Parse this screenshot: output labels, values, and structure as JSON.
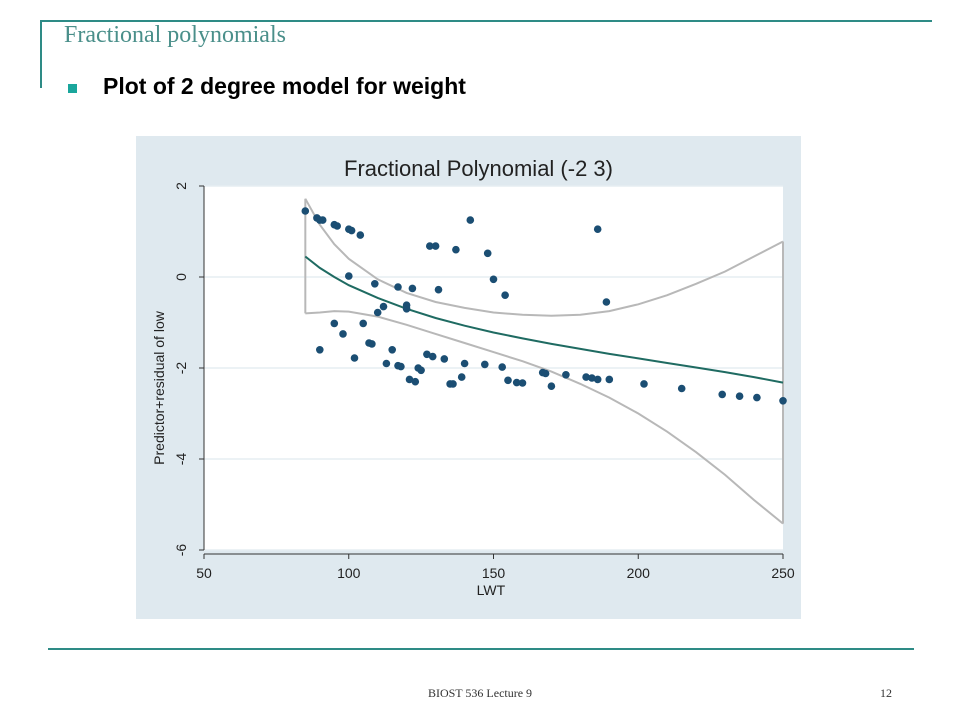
{
  "slide": {
    "title": "Fractional polynomials",
    "bullet": "Plot of 2 degree model for weight",
    "footer": "BIOST 536 Lecture 9",
    "page_number": "12"
  },
  "colors": {
    "accent": "#2e8b86",
    "bullet": "#1aa69c",
    "chart_background": "#dfe9ef",
    "plot_background": "#ffffff",
    "point": "#1b4e73",
    "fit_line": "#1f6b62",
    "ci_line": "#b8b8b8"
  },
  "chart_data": {
    "type": "scatter",
    "title": "Fractional Polynomial (-2 3)",
    "xlabel": "LWT",
    "ylabel": "Predictor+residual of low",
    "xlim": [
      50,
      250
    ],
    "ylim": [
      -6,
      2
    ],
    "xticks": [
      "50",
      "100",
      "150",
      "200",
      "250"
    ],
    "yticks": [
      "-6",
      "-4",
      "-2",
      "0",
      "2"
    ],
    "grid": true,
    "points": [
      [
        85,
        1.45
      ],
      [
        89,
        1.3
      ],
      [
        90,
        1.25
      ],
      [
        91,
        1.25
      ],
      [
        95,
        1.15
      ],
      [
        96,
        1.12
      ],
      [
        100,
        1.05
      ],
      [
        101,
        1.02
      ],
      [
        104,
        0.92
      ],
      [
        128,
        0.68
      ],
      [
        130,
        0.68
      ],
      [
        137,
        0.6
      ],
      [
        142,
        1.25
      ],
      [
        148,
        0.52
      ],
      [
        150,
        -0.05
      ],
      [
        154,
        -0.4
      ],
      [
        186,
        1.05
      ],
      [
        189,
        -0.55
      ],
      [
        100,
        0.02
      ],
      [
        109,
        -0.15
      ],
      [
        117,
        -0.22
      ],
      [
        122,
        -0.25
      ],
      [
        131,
        -0.28
      ],
      [
        120,
        -0.62
      ],
      [
        120,
        -0.7
      ],
      [
        112,
        -0.65
      ],
      [
        110,
        -0.78
      ],
      [
        105,
        -1.02
      ],
      [
        95,
        -1.02
      ],
      [
        98,
        -1.25
      ],
      [
        107,
        -1.45
      ],
      [
        108,
        -1.47
      ],
      [
        90,
        -1.6
      ],
      [
        115,
        -1.6
      ],
      [
        102,
        -1.78
      ],
      [
        113,
        -1.9
      ],
      [
        117,
        -1.95
      ],
      [
        118,
        -1.97
      ],
      [
        124,
        -2.0
      ],
      [
        125,
        -2.05
      ],
      [
        127,
        -1.7
      ],
      [
        129,
        -1.75
      ],
      [
        133,
        -1.8
      ],
      [
        140,
        -1.9
      ],
      [
        147,
        -1.92
      ],
      [
        153,
        -1.98
      ],
      [
        121,
        -2.25
      ],
      [
        123,
        -2.3
      ],
      [
        135,
        -2.35
      ],
      [
        136,
        -2.35
      ],
      [
        139,
        -2.2
      ],
      [
        155,
        -2.27
      ],
      [
        158,
        -2.32
      ],
      [
        160,
        -2.33
      ],
      [
        167,
        -2.1
      ],
      [
        168,
        -2.12
      ],
      [
        170,
        -2.4
      ],
      [
        175,
        -2.15
      ],
      [
        182,
        -2.2
      ],
      [
        184,
        -2.22
      ],
      [
        186,
        -2.25
      ],
      [
        190,
        -2.25
      ],
      [
        202,
        -2.35
      ],
      [
        215,
        -2.45
      ],
      [
        229,
        -2.58
      ],
      [
        235,
        -2.62
      ],
      [
        241,
        -2.65
      ],
      [
        250,
        -2.72
      ]
    ],
    "fit_line": [
      [
        85,
        0.45
      ],
      [
        90,
        0.2
      ],
      [
        95,
        0.0
      ],
      [
        100,
        -0.18
      ],
      [
        110,
        -0.46
      ],
      [
        120,
        -0.7
      ],
      [
        130,
        -0.9
      ],
      [
        140,
        -1.07
      ],
      [
        150,
        -1.22
      ],
      [
        160,
        -1.35
      ],
      [
        170,
        -1.47
      ],
      [
        180,
        -1.58
      ],
      [
        190,
        -1.69
      ],
      [
        200,
        -1.79
      ],
      [
        210,
        -1.89
      ],
      [
        220,
        -1.99
      ],
      [
        230,
        -2.09
      ],
      [
        240,
        -2.2
      ],
      [
        250,
        -2.32
      ]
    ],
    "ci_upper": [
      [
        85,
        1.72
      ],
      [
        90,
        1.15
      ],
      [
        95,
        0.72
      ],
      [
        100,
        0.4
      ],
      [
        110,
        -0.05
      ],
      [
        120,
        -0.35
      ],
      [
        130,
        -0.55
      ],
      [
        140,
        -0.68
      ],
      [
        150,
        -0.78
      ],
      [
        160,
        -0.83
      ],
      [
        170,
        -0.85
      ],
      [
        180,
        -0.83
      ],
      [
        190,
        -0.75
      ],
      [
        200,
        -0.6
      ],
      [
        210,
        -0.4
      ],
      [
        220,
        -0.15
      ],
      [
        230,
        0.12
      ],
      [
        240,
        0.45
      ],
      [
        250,
        0.78
      ]
    ],
    "ci_lower": [
      [
        85,
        -0.8
      ],
      [
        90,
        -0.78
      ],
      [
        95,
        -0.75
      ],
      [
        100,
        -0.76
      ],
      [
        110,
        -0.87
      ],
      [
        120,
        -1.05
      ],
      [
        130,
        -1.25
      ],
      [
        140,
        -1.45
      ],
      [
        150,
        -1.65
      ],
      [
        160,
        -1.85
      ],
      [
        170,
        -2.08
      ],
      [
        180,
        -2.35
      ],
      [
        190,
        -2.65
      ],
      [
        200,
        -3.0
      ],
      [
        210,
        -3.4
      ],
      [
        220,
        -3.85
      ],
      [
        230,
        -4.35
      ],
      [
        240,
        -4.9
      ],
      [
        250,
        -5.42
      ]
    ]
  }
}
